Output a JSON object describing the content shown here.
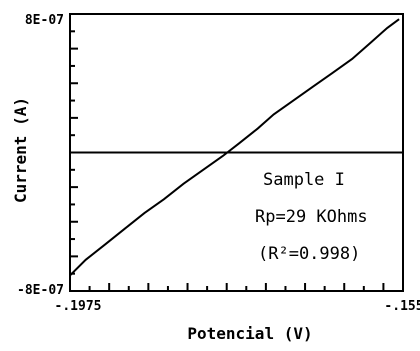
{
  "chart_data": {
    "type": "line",
    "xlabel": "Potencial (V)",
    "ylabel": "Current (A)",
    "xlim": [
      -0.1975,
      -0.155
    ],
    "ylim": [
      -8e-07,
      8e-07
    ],
    "x_tick_labels": [
      "-.1975",
      "-.155"
    ],
    "y_tick_labels": [
      "8E-07",
      "-8E-07"
    ],
    "reference_line_y": 0,
    "annotations": [
      "Sample I",
      "Rp=29 KOhms",
      "(R²=0.998)"
    ],
    "series": [
      {
        "x": [
          -0.1975,
          -0.1955,
          -0.193,
          -0.1905,
          -0.188,
          -0.1855,
          -0.183,
          -0.1805,
          -0.178,
          -0.176,
          -0.1735,
          -0.1715,
          -0.169,
          -0.1665,
          -0.164,
          -0.1615,
          -0.159,
          -0.157,
          -0.1555
        ],
        "y": [
          -7.1e-07,
          -6.2e-07,
          -5.3e-07,
          -4.4e-07,
          -3.5e-07,
          -2.7e-07,
          -1.8e-07,
          -1e-07,
          -2e-08,
          5e-08,
          1.4e-07,
          2.2e-07,
          3e-07,
          3.8e-07,
          4.6e-07,
          5.4e-07,
          6.4e-07,
          7.2e-07,
          7.7e-07
        ]
      }
    ]
  },
  "colors": {
    "line": "#000000",
    "background": "#ffffff"
  }
}
